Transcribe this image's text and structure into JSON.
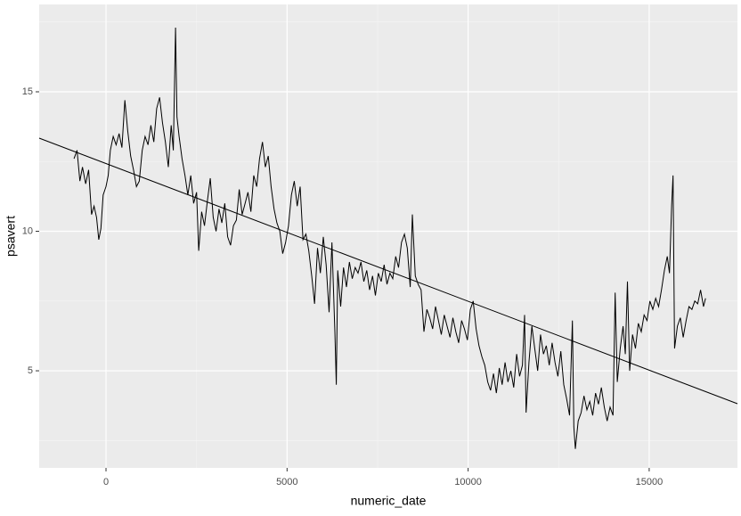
{
  "chart_data": {
    "type": "line",
    "x_label": "numeric_date",
    "y_label": "psavert",
    "xlim": [
      -1845,
      17437
    ],
    "ylim": [
      1.52,
      18.13
    ],
    "xticks": [
      0,
      5000,
      10000,
      15000
    ],
    "yticks": [
      5,
      10,
      15
    ],
    "xminorticks": [
      2500,
      7500,
      12500
    ],
    "yminorticks": [
      2.5,
      7.5,
      12.5,
      17.5
    ],
    "grid": true,
    "color": "#000000",
    "trend_color": "#000000",
    "x": [
      -883,
      -800,
      -720,
      -650,
      -560,
      -480,
      -400,
      -330,
      -260,
      -200,
      -140,
      -80,
      0,
      60,
      120,
      200,
      280,
      360,
      440,
      520,
      600,
      680,
      760,
      840,
      920,
      1000,
      1080,
      1160,
      1240,
      1320,
      1400,
      1480,
      1560,
      1640,
      1720,
      1800,
      1860,
      1920,
      1960,
      2020,
      2100,
      2180,
      2260,
      2340,
      2420,
      2500,
      2560,
      2640,
      2720,
      2800,
      2880,
      2960,
      3040,
      3120,
      3200,
      3280,
      3360,
      3440,
      3520,
      3600,
      3680,
      3760,
      3840,
      3920,
      4000,
      4080,
      4160,
      4240,
      4320,
      4400,
      4480,
      4560,
      4640,
      4720,
      4800,
      4880,
      4960,
      5040,
      5120,
      5200,
      5280,
      5360,
      5440,
      5520,
      5600,
      5680,
      5760,
      5840,
      5920,
      6000,
      6080,
      6160,
      6240,
      6320,
      6360,
      6400,
      6480,
      6560,
      6640,
      6720,
      6800,
      6880,
      6960,
      7040,
      7120,
      7200,
      7280,
      7360,
      7440,
      7520,
      7600,
      7680,
      7760,
      7840,
      7920,
      8000,
      8080,
      8160,
      8240,
      8320,
      8400,
      8460,
      8540,
      8620,
      8700,
      8780,
      8860,
      8940,
      9020,
      9100,
      9180,
      9260,
      9340,
      9420,
      9500,
      9580,
      9660,
      9740,
      9820,
      9900,
      9980,
      10060,
      10140,
      10220,
      10300,
      10380,
      10460,
      10540,
      10620,
      10700,
      10780,
      10860,
      10940,
      11020,
      11100,
      11180,
      11260,
      11340,
      11420,
      11500,
      11560,
      11600,
      11680,
      11760,
      11840,
      11920,
      12000,
      12080,
      12160,
      12240,
      12320,
      12400,
      12480,
      12560,
      12640,
      12720,
      12800,
      12880,
      12920,
      12960,
      13040,
      13120,
      13200,
      13280,
      13360,
      13440,
      13520,
      13600,
      13680,
      13760,
      13840,
      13920,
      14000,
      14060,
      14120,
      14200,
      14280,
      14340,
      14400,
      14460,
      14540,
      14620,
      14700,
      14780,
      14860,
      14940,
      15020,
      15100,
      15180,
      15260,
      15340,
      15420,
      15500,
      15560,
      15620,
      15660,
      15700,
      15780,
      15860,
      15940,
      16020,
      16100,
      16180,
      16260,
      16340,
      16420,
      16500,
      16556
    ],
    "values": [
      12.6,
      12.9,
      11.8,
      12.3,
      11.7,
      12.2,
      10.6,
      10.9,
      10.5,
      9.7,
      10.1,
      11.3,
      11.6,
      12.0,
      12.9,
      13.4,
      13.1,
      13.5,
      13.0,
      14.7,
      13.6,
      12.7,
      12.2,
      11.6,
      11.8,
      12.9,
      13.4,
      13.1,
      13.8,
      13.2,
      14.4,
      14.8,
      13.9,
      13.2,
      12.3,
      13.8,
      12.9,
      17.3,
      14.1,
      13.4,
      12.6,
      12.0,
      11.3,
      12.0,
      11.0,
      11.4,
      9.3,
      10.7,
      10.2,
      11.1,
      11.9,
      10.5,
      10.0,
      10.8,
      10.3,
      11.0,
      9.8,
      9.5,
      10.2,
      10.4,
      11.5,
      10.6,
      11.0,
      11.4,
      10.7,
      12.0,
      11.6,
      12.6,
      13.2,
      12.3,
      12.7,
      11.6,
      10.8,
      10.3,
      10.0,
      9.2,
      9.6,
      10.2,
      11.3,
      11.8,
      10.9,
      11.6,
      9.7,
      9.9,
      9.3,
      8.4,
      7.4,
      9.4,
      8.5,
      9.8,
      8.8,
      7.1,
      9.6,
      6.4,
      4.5,
      8.6,
      7.3,
      8.7,
      8.0,
      8.9,
      8.3,
      8.7,
      8.5,
      8.9,
      8.2,
      8.6,
      7.9,
      8.4,
      7.7,
      8.5,
      8.2,
      8.8,
      8.1,
      8.5,
      8.3,
      9.1,
      8.7,
      9.6,
      9.9,
      9.4,
      8.0,
      10.6,
      8.4,
      8.1,
      7.9,
      6.4,
      7.2,
      6.9,
      6.5,
      7.3,
      6.8,
      6.3,
      7.0,
      6.6,
      6.2,
      6.9,
      6.4,
      6.0,
      6.8,
      6.5,
      6.1,
      7.2,
      7.5,
      6.5,
      5.9,
      5.5,
      5.2,
      4.6,
      4.3,
      4.9,
      4.2,
      5.1,
      4.5,
      5.3,
      4.6,
      5.0,
      4.4,
      5.6,
      4.8,
      5.2,
      7.0,
      3.5,
      5.3,
      6.6,
      5.8,
      5.0,
      6.3,
      5.6,
      5.9,
      5.2,
      6.0,
      5.3,
      4.8,
      5.7,
      4.5,
      4.0,
      3.4,
      6.8,
      3.0,
      2.2,
      3.2,
      3.5,
      4.1,
      3.6,
      3.9,
      3.4,
      4.2,
      3.8,
      4.4,
      3.7,
      3.2,
      3.7,
      3.4,
      7.8,
      4.6,
      5.8,
      6.6,
      5.6,
      8.2,
      5.0,
      6.3,
      5.8,
      6.7,
      6.4,
      7.0,
      6.8,
      7.5,
      7.2,
      7.6,
      7.3,
      7.9,
      8.6,
      9.1,
      8.5,
      10.9,
      12.0,
      5.8,
      6.6,
      6.9,
      6.2,
      6.8,
      7.3,
      7.2,
      7.5,
      7.4,
      7.9,
      7.3,
      7.6
    ],
    "trend": {
      "x": [
        -1845,
        17437
      ],
      "values": [
        13.34,
        3.82
      ]
    }
  }
}
